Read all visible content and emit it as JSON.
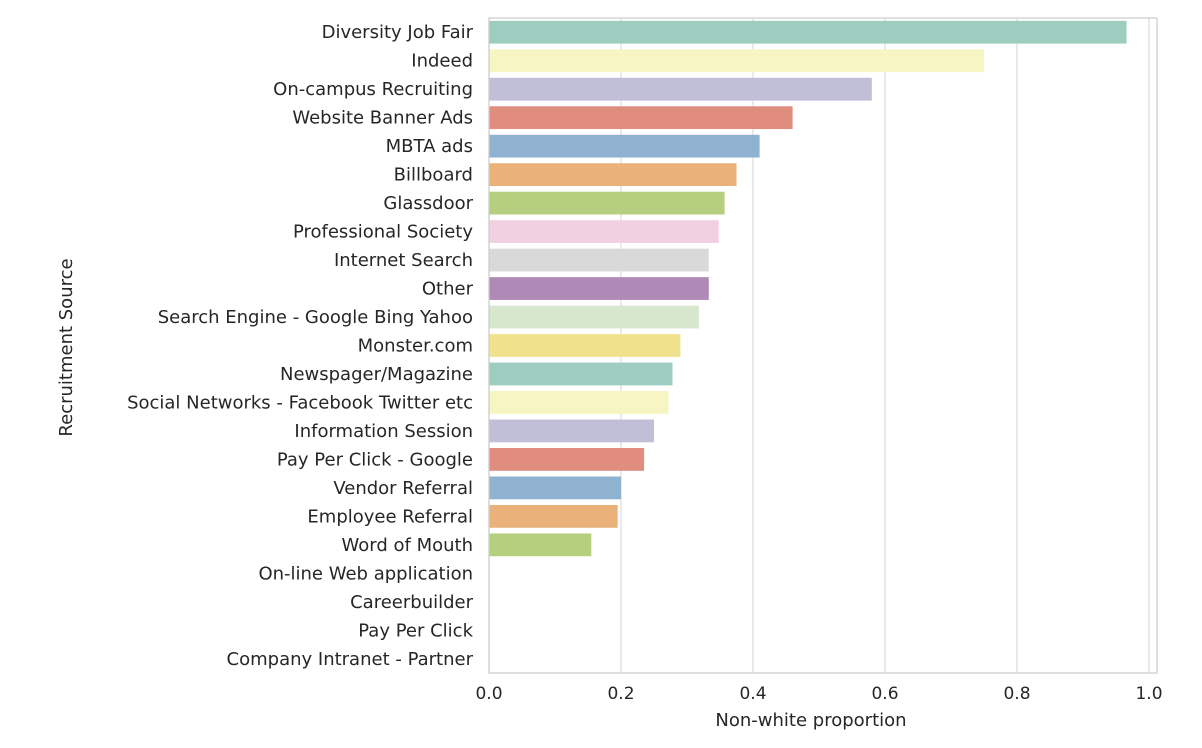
{
  "chart_data": {
    "type": "bar",
    "orientation": "horizontal",
    "xlabel": "Non-white proportion",
    "ylabel": "Recruitment Source",
    "xlim": [
      0,
      1.02
    ],
    "xticks": [
      "0.0",
      "0.2",
      "0.4",
      "0.6",
      "0.8",
      "1.0"
    ],
    "grid": "vertical",
    "categories": [
      "Diversity Job Fair",
      "Indeed",
      "On-campus Recruiting",
      "Website Banner Ads",
      "MBTA ads",
      "Billboard",
      "Glassdoor",
      "Professional Society",
      "Internet Search",
      "Other",
      "Search Engine - Google Bing Yahoo",
      "Monster.com",
      "Newspager/Magazine",
      "Social Networks - Facebook Twitter etc",
      "Information Session",
      "Pay Per Click - Google",
      "Vendor Referral",
      "Employee Referral",
      "Word of Mouth",
      "On-line Web application",
      "Careerbuilder",
      "Pay Per Click",
      "Company Intranet - Partner"
    ],
    "values": [
      0.966,
      0.75,
      0.58,
      0.46,
      0.41,
      0.375,
      0.357,
      0.348,
      0.333,
      0.333,
      0.318,
      0.29,
      0.278,
      0.272,
      0.25,
      0.235,
      0.2,
      0.195,
      0.155,
      0,
      0,
      0,
      0
    ],
    "colors": [
      "#9ecdc0",
      "#f7f6c3",
      "#c1bed8",
      "#e08d80",
      "#8eb2cf",
      "#eab27a",
      "#b5cf7f",
      "#f1d0e1",
      "#d9d9d9",
      "#b08ab6",
      "#d6e7cd",
      "#f0e28c"
    ]
  }
}
